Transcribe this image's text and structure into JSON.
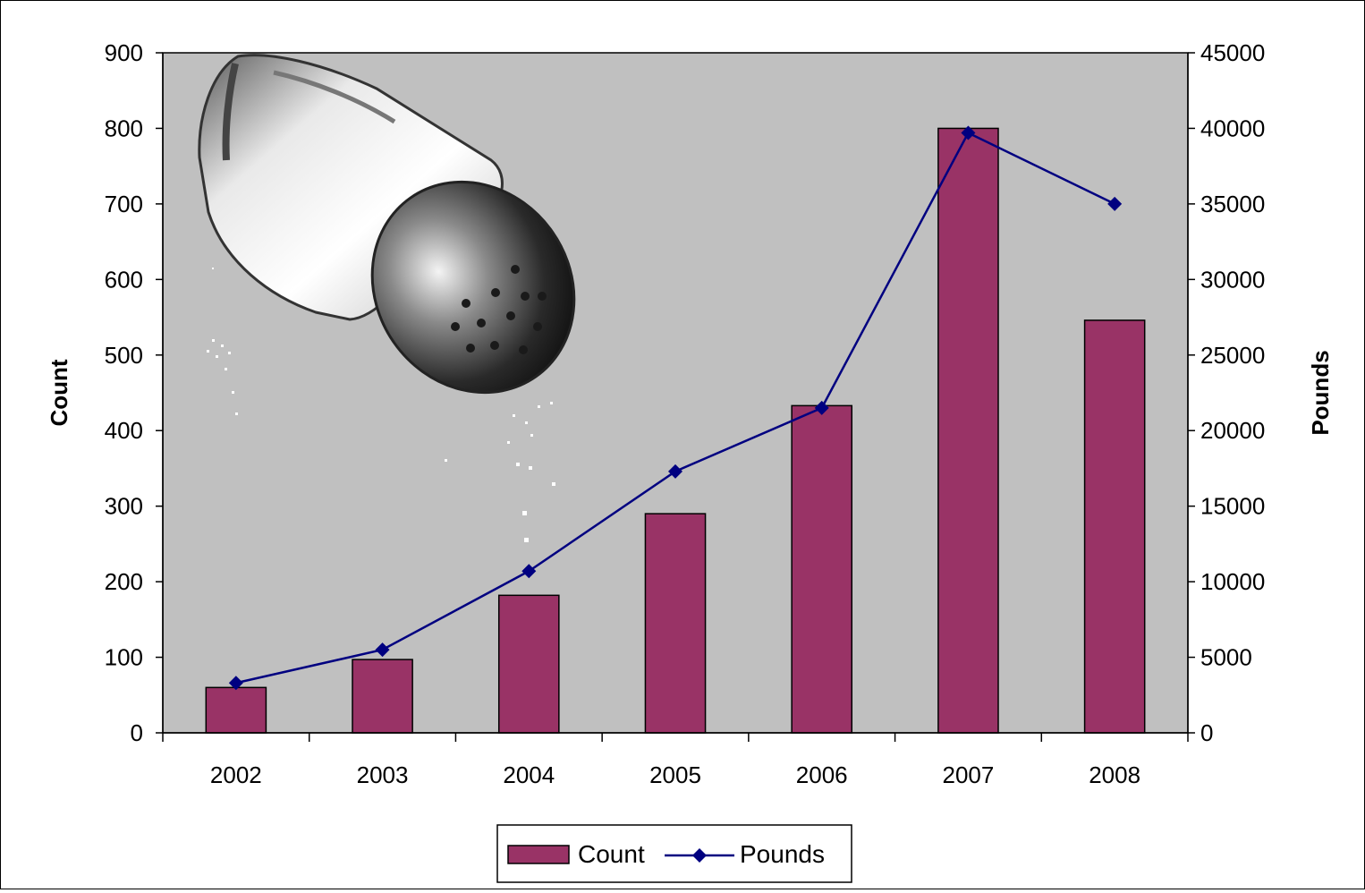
{
  "chart_data": {
    "type": "bar",
    "title": "",
    "categories": [
      "2002",
      "2003",
      "2004",
      "2005",
      "2006",
      "2007",
      "2008"
    ],
    "series": [
      {
        "name": "Count",
        "kind": "bar",
        "axis": "left",
        "color": "#993366",
        "values": [
          60,
          97,
          182,
          290,
          433,
          800,
          546
        ]
      },
      {
        "name": "Pounds",
        "kind": "line",
        "axis": "right",
        "color": "#000080",
        "marker": "diamond",
        "values": [
          3300,
          5500,
          10700,
          17300,
          21500,
          39700,
          35000
        ]
      }
    ],
    "ylabel": "Count",
    "ylim": [
      0,
      900
    ],
    "yticks": [
      "0",
      "100",
      "200",
      "300",
      "400",
      "500",
      "600",
      "700",
      "800",
      "900"
    ],
    "y2label": "Pounds",
    "y2lim": [
      0,
      45000
    ],
    "y2ticks": [
      "0",
      "5000",
      "10000",
      "15000",
      "20000",
      "25000",
      "30000",
      "35000",
      "40000",
      "45000"
    ],
    "legend": {
      "position": "bottom",
      "items": [
        "Count",
        "Pounds"
      ]
    },
    "grid": false,
    "plot_background": "#c0c0c0",
    "decoration": "salt-shaker-image"
  }
}
